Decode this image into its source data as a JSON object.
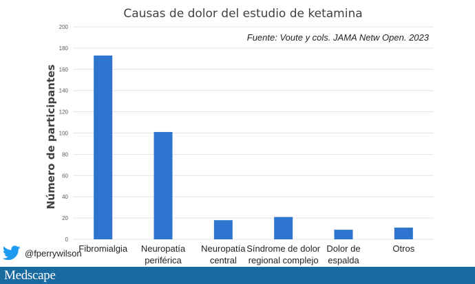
{
  "chart_data": {
    "type": "bar",
    "title": "Causas de dolor del estudio de ketamina",
    "source": "Fuente: Voute y cols. JAMA Netw Open. 2023",
    "ylabel": "Número de participantes",
    "xlabel": "",
    "ylim": [
      0,
      200
    ],
    "yticks": [
      0,
      20,
      40,
      60,
      80,
      100,
      120,
      140,
      160,
      180,
      200
    ],
    "grid": true,
    "categories": [
      [
        "Fibromialgia"
      ],
      [
        "Neuropatía",
        "periférica"
      ],
      [
        "Neuropatía",
        "central"
      ],
      [
        "Síndrome de dolor",
        "regional complejo"
      ],
      [
        "Dolor de",
        "espalda"
      ],
      [
        "Otros"
      ]
    ],
    "values": [
      173,
      101,
      18,
      21,
      9,
      11
    ],
    "bar_color": "#2e75cf"
  },
  "social": {
    "icon": "twitter-bird-icon",
    "handle": "@fperrywilson",
    "icon_color": "#1d9bf0"
  },
  "footer": {
    "brand": "Medscape",
    "color": "#1a6aa2"
  }
}
